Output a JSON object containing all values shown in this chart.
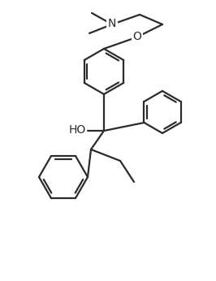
{
  "bg_color": "#ffffff",
  "line_color": "#2b2b2b",
  "line_width": 1.6,
  "figsize": [
    2.66,
    3.46
  ],
  "dpi": 100,
  "xlim": [
    0,
    266
  ],
  "ylim": [
    0,
    346
  ],
  "ring_r": 28,
  "ring2_r": 26,
  "ring3_r": 30,
  "N_label": "N",
  "O_label": "O",
  "HO_label": "HO"
}
